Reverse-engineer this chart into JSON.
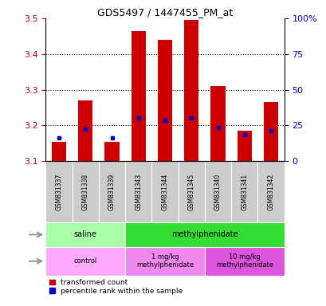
{
  "title": "GDS5497 / 1447455_PM_at",
  "samples": [
    "GSM831337",
    "GSM831338",
    "GSM831339",
    "GSM831343",
    "GSM831344",
    "GSM831345",
    "GSM831340",
    "GSM831341",
    "GSM831342"
  ],
  "red_values": [
    3.155,
    3.27,
    3.155,
    3.465,
    3.44,
    3.495,
    3.31,
    3.185,
    3.265
  ],
  "blue_values": [
    3.165,
    3.19,
    3.165,
    3.22,
    3.215,
    3.22,
    3.195,
    3.175,
    3.185
  ],
  "baseline": 3.1,
  "ylim": [
    3.1,
    3.5
  ],
  "yticks": [
    3.1,
    3.2,
    3.3,
    3.4,
    3.5
  ],
  "right_yticks": [
    0,
    25,
    50,
    75,
    100
  ],
  "right_ylabels": [
    "0",
    "25",
    "50",
    "75",
    "100%"
  ],
  "bar_color": "#cc0000",
  "blue_color": "#0000cc",
  "agent_groups": [
    {
      "label": "saline",
      "start": 0,
      "end": 3,
      "color": "#aaffaa"
    },
    {
      "label": "methylphenidate",
      "start": 3,
      "end": 9,
      "color": "#33dd33"
    }
  ],
  "dose_groups": [
    {
      "label": "control",
      "start": 0,
      "end": 3,
      "color": "#ffaaff"
    },
    {
      "label": "1 mg/kg\nmethylphenidate",
      "start": 3,
      "end": 6,
      "color": "#ee88ee"
    },
    {
      "label": "10 mg/kg\nmethylphenidate",
      "start": 6,
      "end": 9,
      "color": "#dd55dd"
    }
  ],
  "legend_red": "transformed count",
  "legend_blue": "percentile rank within the sample",
  "bar_width": 0.55,
  "tick_label_color_left": "#cc0000",
  "tick_label_color_right": "#0000cc",
  "sample_cell_color": "#cccccc",
  "left_label_color": "#888888"
}
